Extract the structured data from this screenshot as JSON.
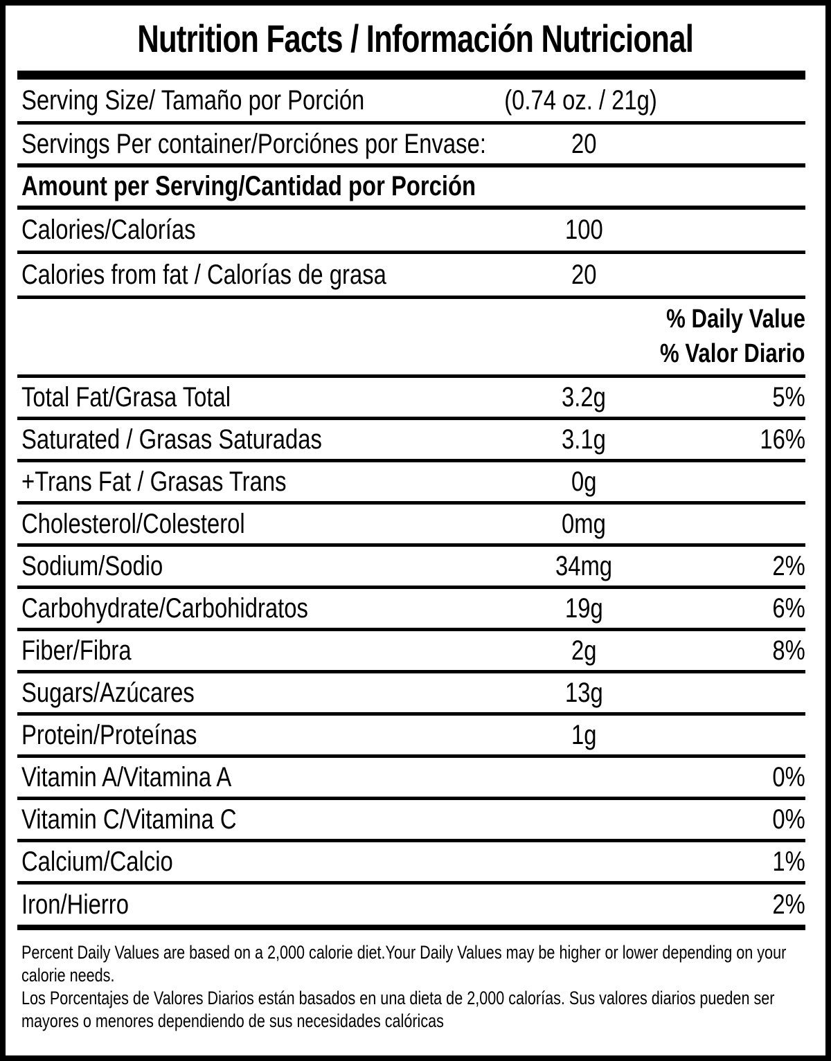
{
  "label": {
    "title": "Nutrition Facts / Información Nutricional",
    "serving_size": {
      "label": "Serving Size/ Tamaño por Porción",
      "value": "(0.74 oz. / 21g)"
    },
    "servings_per_container": {
      "label": "Servings Per container/Porciónes por Envase:",
      "value": "20"
    },
    "amount_per_serving_header": "Amount per Serving/Cantidad por Porción",
    "calories": {
      "label": "Calories/Calorías",
      "value": "100"
    },
    "calories_from_fat": {
      "label": "Calories from fat / Calorías de grasa",
      "value": "20"
    },
    "daily_value_header": {
      "line1": "% Daily Value",
      "line2": "% Valor Diario"
    },
    "nutrients": [
      {
        "name": "Total Fat/Grasa Total",
        "amount": "3.2g",
        "dv": "5%"
      },
      {
        "name": "Saturated / Grasas Saturadas",
        "amount": "3.1g",
        "dv": "16%"
      },
      {
        "name": "+Trans Fat / Grasas Trans",
        "amount": "0g",
        "dv": ""
      },
      {
        "name": "Cholesterol/Colesterol",
        "amount": "0mg",
        "dv": ""
      },
      {
        "name": "Sodium/Sodio",
        "amount": "34mg",
        "dv": "2%"
      },
      {
        "name": "Carbohydrate/Carbohidratos",
        "amount": "19g",
        "dv": "6%"
      },
      {
        "name": "Fiber/Fibra",
        "amount": "2g",
        "dv": "8%"
      },
      {
        "name": "Sugars/Azúcares",
        "amount": "13g",
        "dv": ""
      },
      {
        "name": "Protein/Proteínas",
        "amount": "1g",
        "dv": ""
      },
      {
        "name": "Vitamin A/Vitamina A",
        "amount": "",
        "dv": "0%"
      },
      {
        "name": "Vitamin C/Vitamina C",
        "amount": "",
        "dv": "0%"
      },
      {
        "name": "Calcium/Calcio",
        "amount": "",
        "dv": "1%"
      },
      {
        "name": "Iron/Hierro",
        "amount": "",
        "dv": "2%"
      }
    ],
    "footnote_en": "Percent Daily Values are based on a 2,000 calorie diet.Your Daily Values may be higher or lower depending on your calorie needs.",
    "footnote_es": "Los Porcentajes de Valores Diarios están basados en una dieta de 2,000 calorías. Sus valores diarios pueden ser mayores o menores dependiendo de sus necesidades calóricas",
    "colors": {
      "text": "#000000",
      "background": "#ffffff"
    }
  }
}
